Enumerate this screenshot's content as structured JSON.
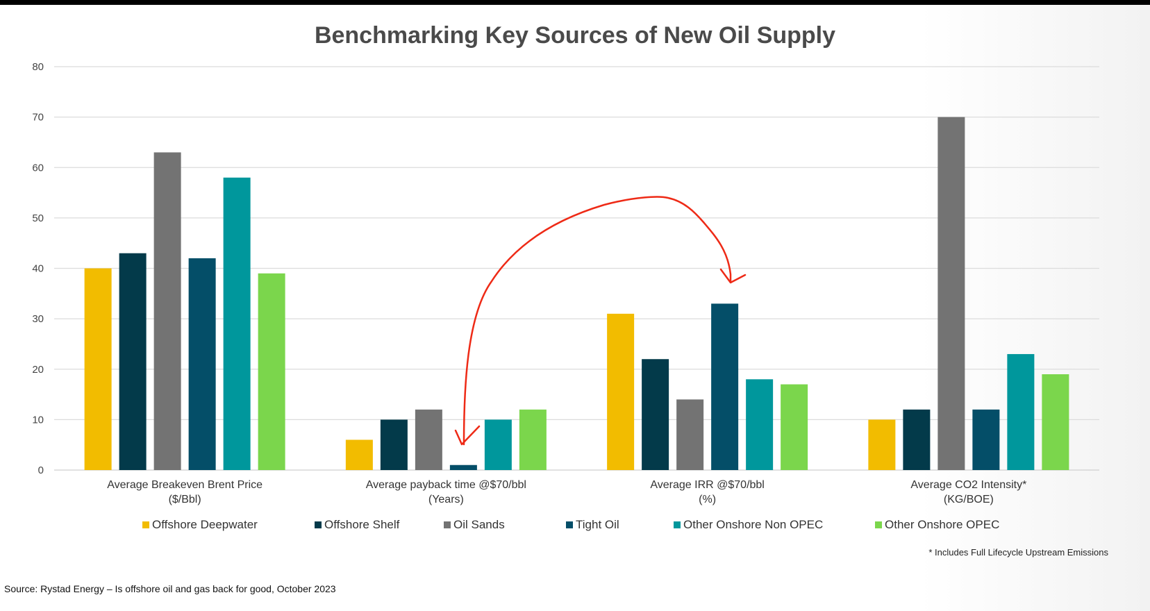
{
  "chart_data": {
    "type": "bar",
    "title": "Benchmarking Key Sources of New Oil Supply",
    "categories": [
      [
        "Average Breakeven Brent Price",
        "($/Bbl)"
      ],
      [
        "Average payback time @$70/bbl",
        "(Years)"
      ],
      [
        "Average IRR @$70/bbl",
        "(%)"
      ],
      [
        "Average CO2 Intensity*",
        "(KG/BOE)"
      ]
    ],
    "yticks": [
      "0",
      "10",
      "20",
      "30",
      "40",
      "50",
      "60",
      "70",
      "80"
    ],
    "ylim": [
      0,
      80
    ],
    "grid": true,
    "legend_position": "bottom",
    "series": [
      {
        "name": "Offshore Deepwater",
        "color": "#f2bc00",
        "values": [
          40,
          6,
          31,
          10
        ]
      },
      {
        "name": "Offshore Shelf",
        "color": "#033a4a",
        "values": [
          43,
          10,
          22,
          12
        ]
      },
      {
        "name": "Oil Sands",
        "color": "#737373",
        "values": [
          63,
          12,
          14,
          70
        ]
      },
      {
        "name": "Tight Oil",
        "color": "#044e68",
        "values": [
          42,
          1,
          33,
          12
        ]
      },
      {
        "name": "Other Onshore Non OPEC",
        "color": "#00979c",
        "values": [
          58,
          10,
          18,
          23
        ]
      },
      {
        "name": "Other Onshore OPEC",
        "color": "#7bd64c",
        "values": [
          39,
          12,
          17,
          19
        ]
      }
    ],
    "annotation_color": "#ee2a16"
  },
  "footnote": "* Includes Full Lifecycle Upstream Emissions",
  "source": "Source: Rystad Energy – Is offshore oil and gas back for good, October 2023"
}
